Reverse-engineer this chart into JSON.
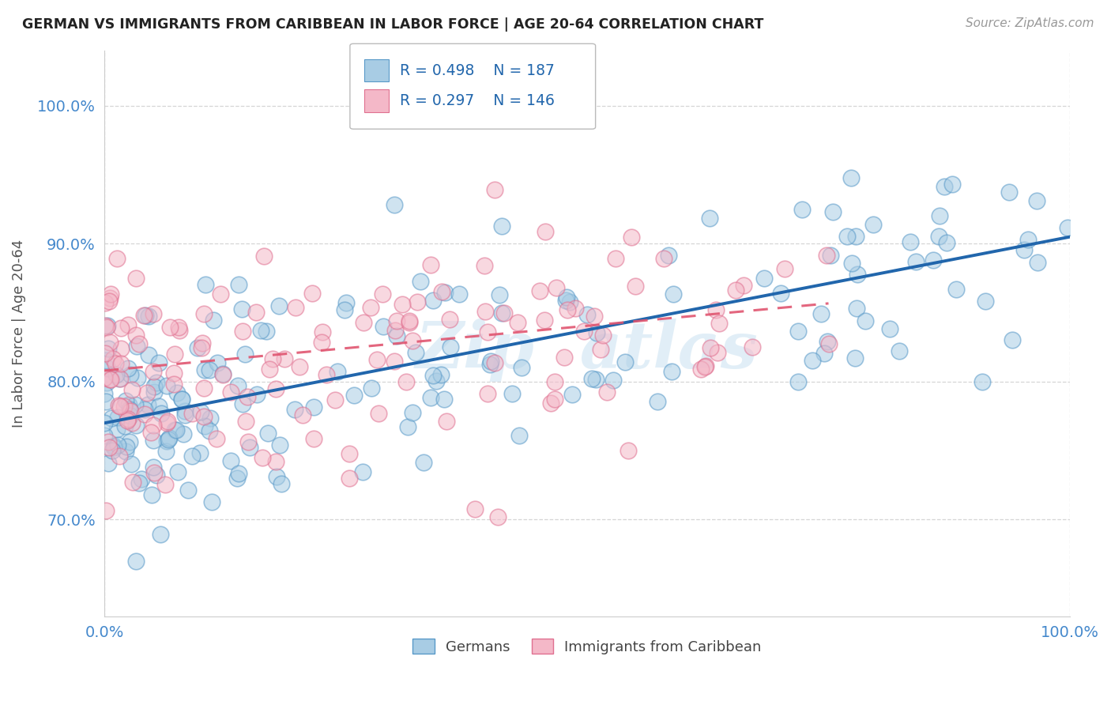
{
  "title": "GERMAN VS IMMIGRANTS FROM CARIBBEAN IN LABOR FORCE | AGE 20-64 CORRELATION CHART",
  "source": "Source: ZipAtlas.com",
  "ylabel": "In Labor Force | Age 20-64",
  "legend_r_blue": "R = 0.498",
  "legend_n_blue": "N = 187",
  "legend_r_pink": "R = 0.297",
  "legend_n_pink": "N = 146",
  "blue_scatter_color": "#a8cce4",
  "pink_scatter_color": "#f4b8c8",
  "blue_line_color": "#2166ac",
  "pink_line_color": "#e05570",
  "watermark_color": "#c5dff0",
  "background_color": "#ffffff",
  "grid_color": "#cccccc",
  "title_color": "#222222",
  "axis_label_color": "#555555",
  "tick_label_color": "#4488cc",
  "legend_n_color": "#2166ac",
  "x_min": 0.0,
  "x_max": 1.0,
  "y_min": 0.63,
  "y_max": 1.04,
  "blue_r": 0.498,
  "pink_r": 0.297
}
